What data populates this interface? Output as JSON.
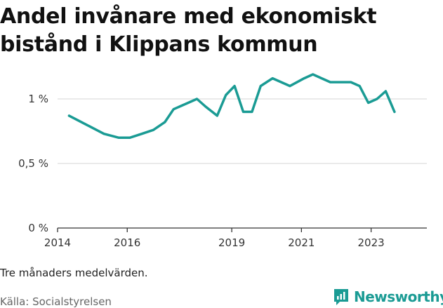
{
  "title": "Andel invånare med ekonomiskt bistånd i Klippans kommun",
  "note": "Tre månaders medelvärden.",
  "source": "Källa: Socialstyrelsen",
  "brand": {
    "name": "Newsworthy",
    "icon": "newsworthy-logo-icon",
    "color": "#1a9b94"
  },
  "colors": {
    "line": "#1a9b94",
    "grid": "#dddddd",
    "axis": "#333333"
  },
  "chart_data": {
    "type": "line",
    "title": "Andel invånare med ekonomiskt bistånd i Klippans kommun",
    "xlabel": "",
    "ylabel": "",
    "xlim": [
      2014,
      2024.6
    ],
    "ylim": [
      0,
      1.25
    ],
    "y_ticks": [
      0,
      0.5,
      1
    ],
    "y_tick_labels": [
      "0 %",
      "0,5 %",
      "1 %"
    ],
    "x_ticks": [
      2014,
      2016,
      2019,
      2021,
      2023
    ],
    "x_tick_labels": [
      "2014",
      "2016",
      "2019",
      "2021",
      "2023"
    ],
    "grid": true,
    "series": [
      {
        "x": [
          2014.33,
          2014.83,
          2015.33,
          2015.75,
          2016.08,
          2016.42,
          2016.75,
          2017.08,
          2017.33,
          2017.75,
          2018.0,
          2018.25,
          2018.58,
          2018.83,
          2019.08,
          2019.33,
          2019.58,
          2019.83,
          2020.17,
          2020.67,
          2021.08,
          2021.33,
          2021.58,
          2021.83,
          2022.17,
          2022.42,
          2022.67,
          2022.92,
          2023.17,
          2023.42,
          2023.67
        ],
        "y": [
          0.87,
          0.8,
          0.73,
          0.7,
          0.7,
          0.73,
          0.76,
          0.82,
          0.92,
          0.97,
          1.0,
          0.94,
          0.87,
          1.03,
          1.1,
          0.9,
          0.9,
          1.1,
          1.16,
          1.1,
          1.16,
          1.19,
          1.16,
          1.13,
          1.13,
          1.13,
          1.1,
          0.97,
          1.0,
          1.06,
          0.9
        ]
      }
    ]
  }
}
